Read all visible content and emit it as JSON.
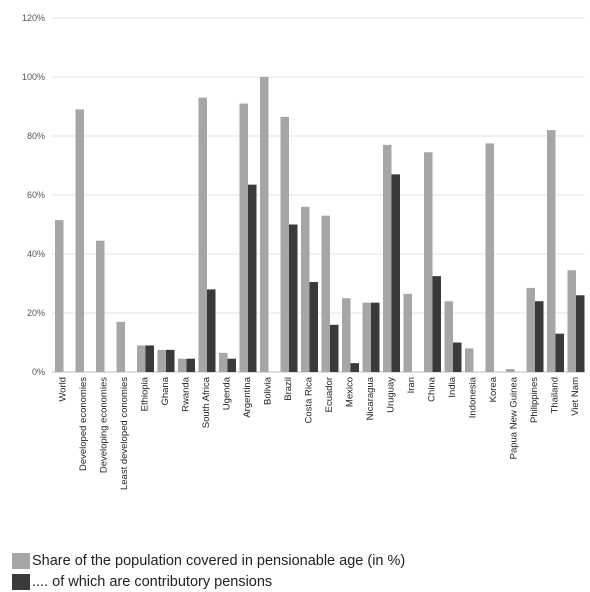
{
  "chart_data": {
    "type": "bar",
    "ylim": [
      0,
      120
    ],
    "yticks": [
      "0%",
      "20%",
      "40%",
      "60%",
      "80%",
      "100%",
      "120%"
    ],
    "categories": [
      "World",
      "Developed economies",
      "Developing economies",
      "Least developed conomies",
      "Ethiopia",
      "Ghana",
      "Rwanda",
      "South Africa",
      "Ugenda",
      "Argentina",
      "Bolivia",
      "Brazil",
      "Costa Rica",
      "Ecuador",
      "Mexico",
      "Nicaragua",
      "Uruguay",
      "Iran",
      "China",
      "India",
      "Indonesia",
      "Korea",
      "Papua New Guinea",
      "Philippines",
      "Thailand",
      "Viet Nam"
    ],
    "series": [
      {
        "name": "Share of the population covered in pensionable age (in %)",
        "color": "#a6a6a6",
        "values": [
          51.5,
          89,
          44.5,
          17,
          9,
          7.5,
          4.5,
          93,
          6.5,
          91,
          100,
          86.5,
          56,
          53,
          25,
          23.5,
          77,
          26.5,
          74.5,
          24,
          8,
          77.5,
          1,
          28.5,
          82,
          34.5
        ]
      },
      {
        "name": ".... of which are contributory pensions",
        "color": "#3a3a3a",
        "values": [
          null,
          null,
          null,
          null,
          9,
          7.5,
          4.5,
          28,
          4.5,
          63.5,
          null,
          50,
          30.5,
          16,
          3,
          23.5,
          67,
          null,
          32.5,
          10,
          null,
          null,
          null,
          24,
          13,
          26
        ]
      }
    ],
    "grid": true
  }
}
